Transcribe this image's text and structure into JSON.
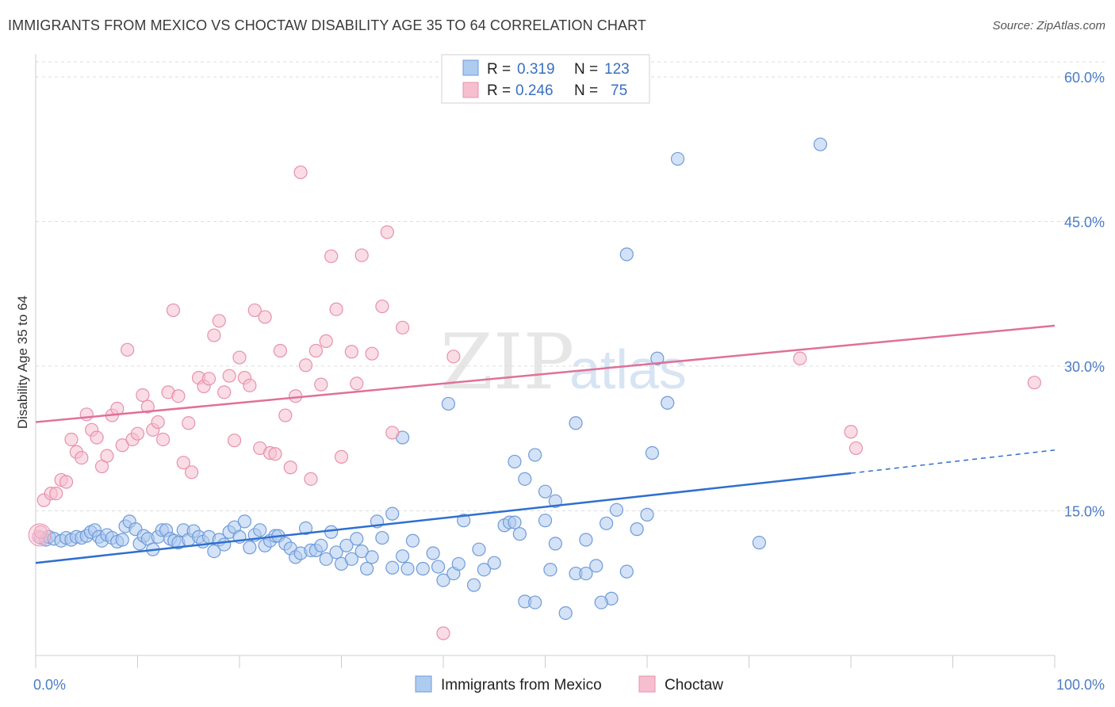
{
  "title": "IMMIGRANTS FROM MEXICO VS CHOCTAW DISABILITY AGE 35 TO 64 CORRELATION CHART",
  "source": "Source: ZipAtlas.com",
  "watermark": {
    "zip": "ZIP",
    "atlas": "atlas"
  },
  "colors": {
    "blue_fill": "#aecbf0",
    "blue_stroke": "#6f9bd8",
    "blue_line": "#2f6fcf",
    "pink_fill": "#f6bfd0",
    "pink_stroke": "#e890ac",
    "pink_line": "#e0709a",
    "tick": "#4a7cc7",
    "grid": "#dddddd"
  },
  "legend": {
    "rows": [
      {
        "r_label": "R =",
        "r_value": "0.319",
        "n_label": "N =",
        "n_value": "123"
      },
      {
        "r_label": "R =",
        "r_value": "0.246",
        "n_label": "N =",
        "n_value": "75"
      }
    ]
  },
  "chart_data": {
    "type": "scatter",
    "xlabel": "",
    "ylabel": "Disability Age 35 to 64",
    "xlim": [
      0,
      100
    ],
    "ylim": [
      0,
      60
    ],
    "x_tick_labels": [
      "0.0%",
      "100.0%"
    ],
    "y_ticks": [
      15,
      30,
      45,
      60
    ],
    "y_tick_labels": [
      "15.0%",
      "30.0%",
      "45.0%",
      "60.0%"
    ],
    "grid": true,
    "legend_position": "top-center",
    "series": [
      {
        "name": "Immigrants from Mexico",
        "color": "#aecbf0",
        "trend": {
          "x0": 0,
          "y0": 9.6,
          "x1": 80,
          "y1": 18.9,
          "dash_to_x": 100,
          "dash_to_y": 21.3
        },
        "points": [
          [
            0.5,
            12.2
          ],
          [
            1,
            12.0
          ],
          [
            1.3,
            12.3
          ],
          [
            1.8,
            12.1
          ],
          [
            2.5,
            11.9
          ],
          [
            3,
            12.2
          ],
          [
            3.5,
            12.0
          ],
          [
            4,
            12.3
          ],
          [
            4.5,
            12.2
          ],
          [
            5,
            12.4
          ],
          [
            5.4,
            12.8
          ],
          [
            5.8,
            13.0
          ],
          [
            6.2,
            12.3
          ],
          [
            6.5,
            11.9
          ],
          [
            7,
            12.5
          ],
          [
            7.5,
            12.2
          ],
          [
            8,
            11.8
          ],
          [
            8.5,
            12.0
          ],
          [
            8.8,
            13.4
          ],
          [
            9.2,
            13.9
          ],
          [
            9.8,
            13.1
          ],
          [
            10.2,
            11.6
          ],
          [
            10.6,
            12.4
          ],
          [
            11,
            12.1
          ],
          [
            11.5,
            11.0
          ],
          [
            12,
            12.3
          ],
          [
            12.4,
            13.0
          ],
          [
            12.8,
            13.0
          ],
          [
            13.2,
            12.1
          ],
          [
            13.6,
            11.9
          ],
          [
            14,
            11.7
          ],
          [
            14.5,
            13.0
          ],
          [
            15,
            12.0
          ],
          [
            15.5,
            12.9
          ],
          [
            16,
            12.3
          ],
          [
            16.4,
            11.8
          ],
          [
            17,
            12.3
          ],
          [
            17.5,
            10.8
          ],
          [
            18,
            12.0
          ],
          [
            18.5,
            11.5
          ],
          [
            19,
            12.8
          ],
          [
            19.5,
            13.3
          ],
          [
            20,
            12.3
          ],
          [
            20.5,
            13.9
          ],
          [
            21,
            11.2
          ],
          [
            21.5,
            12.5
          ],
          [
            22,
            13.0
          ],
          [
            22.5,
            11.4
          ],
          [
            23,
            11.9
          ],
          [
            23.5,
            12.4
          ],
          [
            23.8,
            12.4
          ],
          [
            24.5,
            11.6
          ],
          [
            25,
            11.1
          ],
          [
            25.5,
            10.2
          ],
          [
            26,
            10.6
          ],
          [
            26.5,
            13.2
          ],
          [
            27,
            10.9
          ],
          [
            27.5,
            10.9
          ],
          [
            28,
            11.4
          ],
          [
            28.5,
            10.0
          ],
          [
            29,
            12.8
          ],
          [
            29.5,
            10.7
          ],
          [
            30,
            9.5
          ],
          [
            30.5,
            11.4
          ],
          [
            31,
            10.0
          ],
          [
            31.5,
            12.1
          ],
          [
            32,
            10.8
          ],
          [
            32.5,
            9.0
          ],
          [
            33,
            10.2
          ],
          [
            33.5,
            13.9
          ],
          [
            34,
            12.2
          ],
          [
            35,
            9.1
          ],
          [
            36,
            10.3
          ],
          [
            36.5,
            9.0
          ],
          [
            37,
            11.9
          ],
          [
            38,
            9.0
          ],
          [
            39,
            10.6
          ],
          [
            39.5,
            9.2
          ],
          [
            40,
            7.8
          ],
          [
            41,
            8.5
          ],
          [
            41.5,
            9.5
          ],
          [
            42,
            14.0
          ],
          [
            43,
            7.3
          ],
          [
            43.5,
            11.0
          ],
          [
            44,
            8.9
          ],
          [
            45,
            9.6
          ],
          [
            46,
            13.5
          ],
          [
            46.5,
            13.8
          ],
          [
            47,
            13.8
          ],
          [
            47.5,
            12.6
          ],
          [
            48,
            5.6
          ],
          [
            49,
            5.5
          ],
          [
            50,
            14.0
          ],
          [
            50.5,
            8.9
          ],
          [
            51,
            11.6
          ],
          [
            52,
            4.4
          ],
          [
            53,
            8.5
          ],
          [
            54,
            12.0
          ],
          [
            55,
            9.3
          ],
          [
            56,
            13.7
          ],
          [
            56.5,
            5.9
          ],
          [
            57,
            15.1
          ],
          [
            58,
            8.7
          ],
          [
            59,
            13.1
          ],
          [
            60,
            14.6
          ],
          [
            61,
            30.8
          ],
          [
            50,
            17.0
          ],
          [
            51,
            16.0
          ],
          [
            48,
            18.3
          ],
          [
            47,
            20.1
          ],
          [
            49,
            20.8
          ],
          [
            53,
            24.1
          ],
          [
            54,
            8.5
          ],
          [
            55.5,
            5.5
          ],
          [
            62,
            26.2
          ],
          [
            60.5,
            21.0
          ],
          [
            40.5,
            26.1
          ],
          [
            36,
            22.6
          ],
          [
            35,
            14.7
          ],
          [
            58,
            41.6
          ],
          [
            63,
            51.5
          ],
          [
            77,
            53.0
          ],
          [
            71,
            11.7
          ]
        ]
      },
      {
        "name": "Choctaw",
        "color": "#f6bfd0",
        "trend": {
          "x0": 0,
          "y0": 24.2,
          "x1": 100,
          "y1": 34.2
        },
        "points": [
          [
            0.3,
            12.3
          ],
          [
            0.8,
            16.1
          ],
          [
            1.5,
            16.8
          ],
          [
            2,
            16.8
          ],
          [
            2.5,
            18.2
          ],
          [
            3,
            18.0
          ],
          [
            3.5,
            22.4
          ],
          [
            4,
            21.1
          ],
          [
            4.5,
            20.5
          ],
          [
            5,
            25.0
          ],
          [
            5.5,
            23.4
          ],
          [
            6,
            22.6
          ],
          [
            6.5,
            19.6
          ],
          [
            7,
            20.7
          ],
          [
            7.5,
            24.9
          ],
          [
            8,
            25.6
          ],
          [
            8.5,
            21.8
          ],
          [
            9,
            31.7
          ],
          [
            9.5,
            22.4
          ],
          [
            10,
            23.0
          ],
          [
            10.5,
            27.0
          ],
          [
            11,
            25.8
          ],
          [
            11.5,
            23.4
          ],
          [
            12,
            24.2
          ],
          [
            12.5,
            22.4
          ],
          [
            13,
            27.3
          ],
          [
            13.5,
            35.8
          ],
          [
            14,
            26.9
          ],
          [
            14.5,
            20.0
          ],
          [
            15,
            24.1
          ],
          [
            15.3,
            19.0
          ],
          [
            16,
            28.8
          ],
          [
            16.5,
            27.9
          ],
          [
            17,
            28.7
          ],
          [
            17.5,
            33.2
          ],
          [
            18,
            34.7
          ],
          [
            18.5,
            27.3
          ],
          [
            19,
            29.0
          ],
          [
            19.5,
            22.3
          ],
          [
            20,
            30.9
          ],
          [
            20.5,
            28.8
          ],
          [
            21,
            28.0
          ],
          [
            21.5,
            35.8
          ],
          [
            22,
            21.5
          ],
          [
            22.5,
            35.1
          ],
          [
            23,
            21.0
          ],
          [
            23.5,
            20.9
          ],
          [
            24,
            31.6
          ],
          [
            24.5,
            24.9
          ],
          [
            25,
            19.5
          ],
          [
            25.5,
            26.9
          ],
          [
            26,
            50.1
          ],
          [
            26.5,
            30.1
          ],
          [
            27,
            18.3
          ],
          [
            27.5,
            31.6
          ],
          [
            28,
            28.1
          ],
          [
            28.5,
            32.6
          ],
          [
            29,
            41.4
          ],
          [
            29.5,
            35.9
          ],
          [
            30,
            20.6
          ],
          [
            31,
            31.5
          ],
          [
            31.5,
            28.2
          ],
          [
            32,
            41.5
          ],
          [
            33,
            31.3
          ],
          [
            34,
            36.2
          ],
          [
            34.5,
            43.9
          ],
          [
            35,
            23.1
          ],
          [
            36,
            34.0
          ],
          [
            40,
            2.3
          ],
          [
            41,
            31.0
          ],
          [
            75,
            30.8
          ],
          [
            80,
            23.2
          ],
          [
            80.5,
            21.5
          ],
          [
            98,
            28.3
          ],
          [
            0.5,
            12.8
          ]
        ]
      }
    ]
  }
}
